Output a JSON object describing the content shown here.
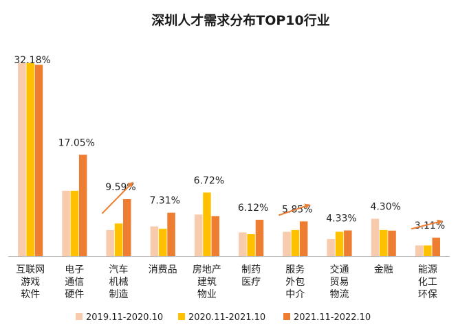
{
  "chart_data": {
    "type": "bar",
    "title": "深圳人才需求分布TOP10行业",
    "xlabel": "",
    "ylabel": "",
    "ylim": [
      0,
      35
    ],
    "grid": false,
    "legend_position": "bottom",
    "categories": [
      [
        "互联网",
        "游戏",
        "软件"
      ],
      [
        "电子",
        "通信",
        "硬件"
      ],
      [
        "汽车",
        "机械",
        "制造"
      ],
      [
        "消费品"
      ],
      [
        "房地产",
        "建筑",
        "物业"
      ],
      [
        "制药",
        "医疗"
      ],
      [
        "服务",
        "外包",
        "中介"
      ],
      [
        "交通",
        "贸易",
        "物流"
      ],
      [
        "金融"
      ],
      [
        "能源",
        "化工",
        "环保"
      ]
    ],
    "series": [
      {
        "name": "2019.11-2020.10",
        "color": "#F8CBAD",
        "values": [
          32.5,
          11.0,
          4.4,
          5.0,
          7.0,
          4.0,
          4.1,
          2.9,
          6.3,
          1.8
        ]
      },
      {
        "name": "2020.11-2021.10",
        "color": "#FFC000",
        "values": [
          32.5,
          11.0,
          5.5,
          4.6,
          10.7,
          3.7,
          4.4,
          4.1,
          4.4,
          1.8
        ]
      },
      {
        "name": "2021.11-2022.10",
        "color": "#ED7D31",
        "values": [
          32.18,
          17.05,
          9.59,
          7.31,
          6.72,
          6.12,
          5.85,
          4.33,
          4.3,
          3.11
        ]
      }
    ],
    "data_labels": [
      "32.18%",
      "17.05%",
      "9.59%",
      "7.31%",
      "6.72%",
      "6.12%",
      "5.85%",
      "4.33%",
      "4.30%",
      "3.11%"
    ],
    "trend_arrows_on": [
      "汽车机械制造",
      "服务外包中介",
      "能源化工环保"
    ],
    "arrow_color": "#ED7D31"
  }
}
